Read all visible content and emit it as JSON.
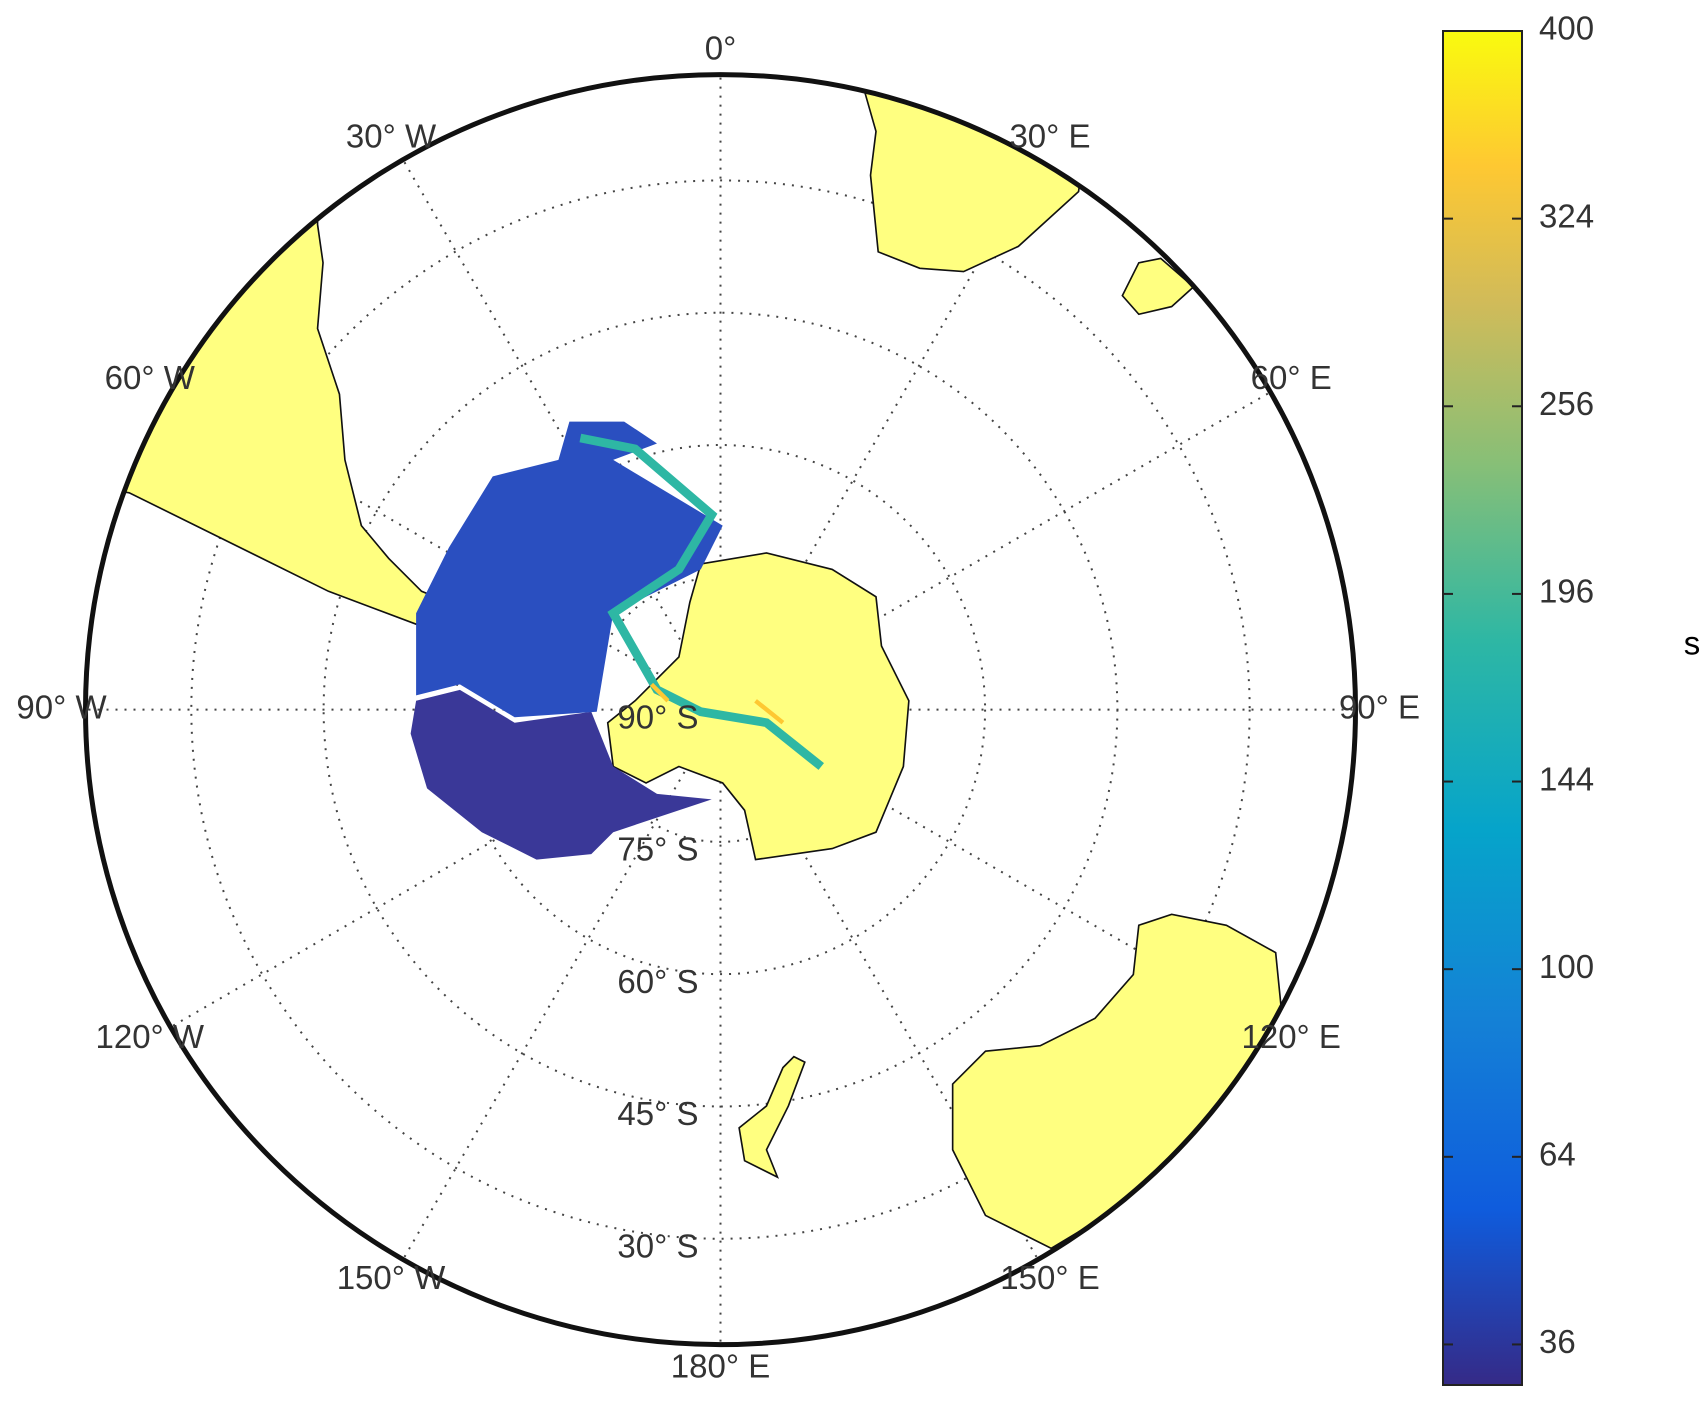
{
  "map": {
    "type": "polar-map",
    "longitude_labels": [
      {
        "value": 0,
        "label": "0°"
      },
      {
        "value": 30,
        "label": "30° E"
      },
      {
        "value": 60,
        "label": "60° E"
      },
      {
        "value": 90,
        "label": "90° E"
      },
      {
        "value": 120,
        "label": "120° E"
      },
      {
        "value": 150,
        "label": "150° E"
      },
      {
        "value": 180,
        "label": "180° E"
      },
      {
        "value": -150,
        "label": "150° W"
      },
      {
        "value": -120,
        "label": "120° W"
      },
      {
        "value": -90,
        "label": "90° W"
      },
      {
        "value": -60,
        "label": "60° W"
      },
      {
        "value": -30,
        "label": "30° W"
      }
    ],
    "latitude_labels": [
      {
        "value": -90,
        "label": "90° S"
      },
      {
        "value": -75,
        "label": "75° S"
      },
      {
        "value": -60,
        "label": "60° S"
      },
      {
        "value": -45,
        "label": "45° S"
      },
      {
        "value": -30,
        "label": "30° S"
      }
    ],
    "latlim": [
      -90,
      -18
    ],
    "grid": true
  },
  "colorbar": {
    "clim": [
      31,
      400
    ],
    "scale": "sqrt",
    "ticks": [
      36,
      64,
      100,
      144,
      196,
      256,
      324,
      400
    ],
    "label": "s"
  }
}
